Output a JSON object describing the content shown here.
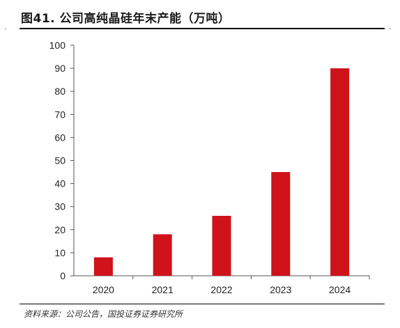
{
  "header": {
    "title": "图41. 公司高纯晶硅年末产能（万吨）"
  },
  "footer": {
    "source": "资料来源：公司公告，国投证券证券研究所"
  },
  "colors": {
    "bar": "#d0121b",
    "axis": "#555555",
    "text": "#222222"
  },
  "chart_data": {
    "type": "bar",
    "title": "图41. 公司高纯晶硅年末产能（万吨）",
    "categories": [
      "2020",
      "2021",
      "2022",
      "2023",
      "2024"
    ],
    "values": [
      8,
      18,
      26,
      45,
      90
    ],
    "ylim": [
      0,
      100
    ],
    "yticks": [
      0,
      10,
      20,
      30,
      40,
      50,
      60,
      70,
      80,
      90,
      100
    ],
    "xlabel": "",
    "ylabel": "",
    "grid": false
  }
}
